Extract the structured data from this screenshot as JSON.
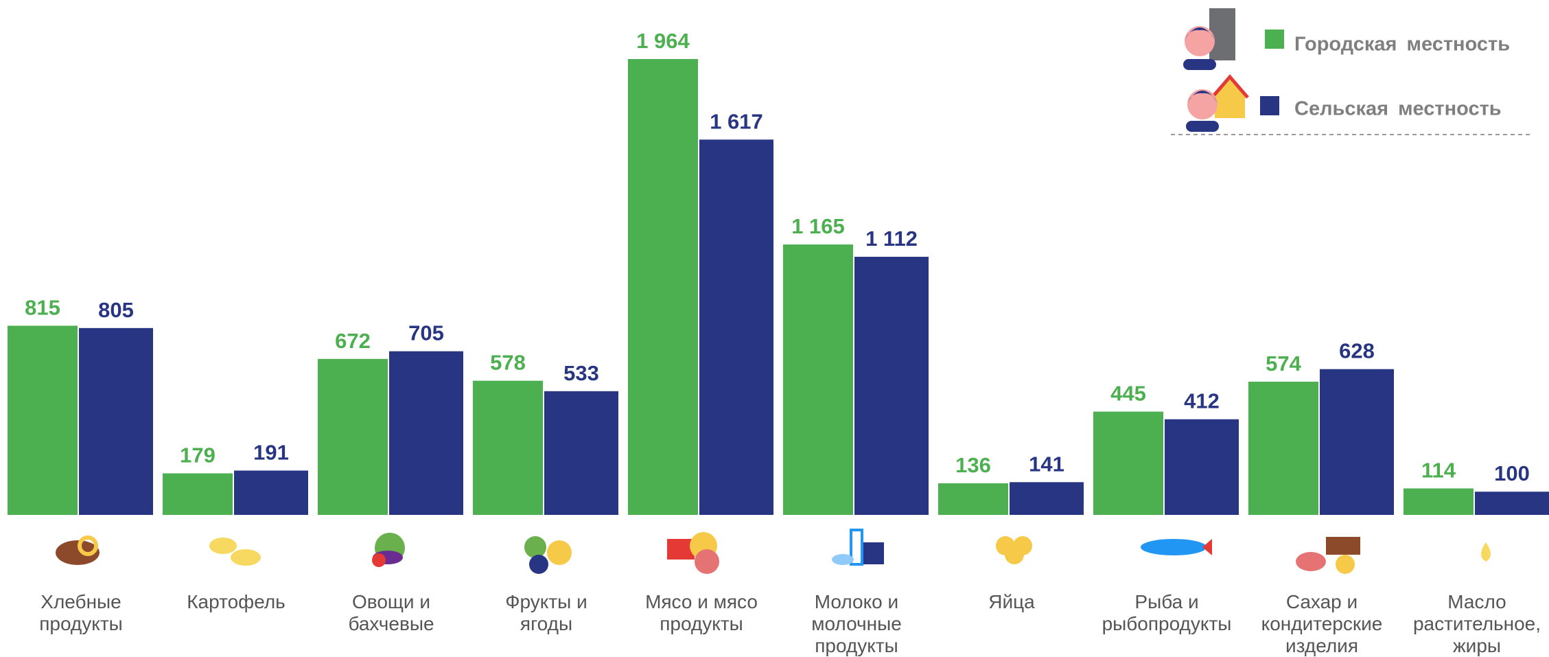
{
  "chart_data": {
    "type": "bar",
    "categories": [
      "Хлебные\nпродукты",
      "Картофель",
      "Овощи и\nбахчевые",
      "Фрукты и\nягоды",
      "Мясо и мясо\nпродукты",
      "Молоко и\nмолочные\nпродукты",
      "Яйца",
      "Рыба и\nрыбопродукты",
      "Сахар и\nкондитерские\nизделия",
      "Масло\nрастительное,\nжиры"
    ],
    "series": [
      {
        "name": "Городская местность",
        "color": "#4caf50",
        "values": [
          815,
          179,
          672,
          578,
          1964,
          1165,
          136,
          445,
          574,
          114
        ],
        "value_labels": [
          "815",
          "179",
          "672",
          "578",
          "1 964",
          "1 165",
          "136",
          "445",
          "574",
          "114"
        ]
      },
      {
        "name": "Сельская местность",
        "color": "#283583",
        "values": [
          805,
          191,
          705,
          533,
          1617,
          1112,
          141,
          412,
          628,
          100
        ],
        "value_labels": [
          "805",
          "191",
          "705",
          "533",
          "1 617",
          "1 112",
          "141",
          "412",
          "628",
          "100"
        ]
      }
    ]
  }
}
